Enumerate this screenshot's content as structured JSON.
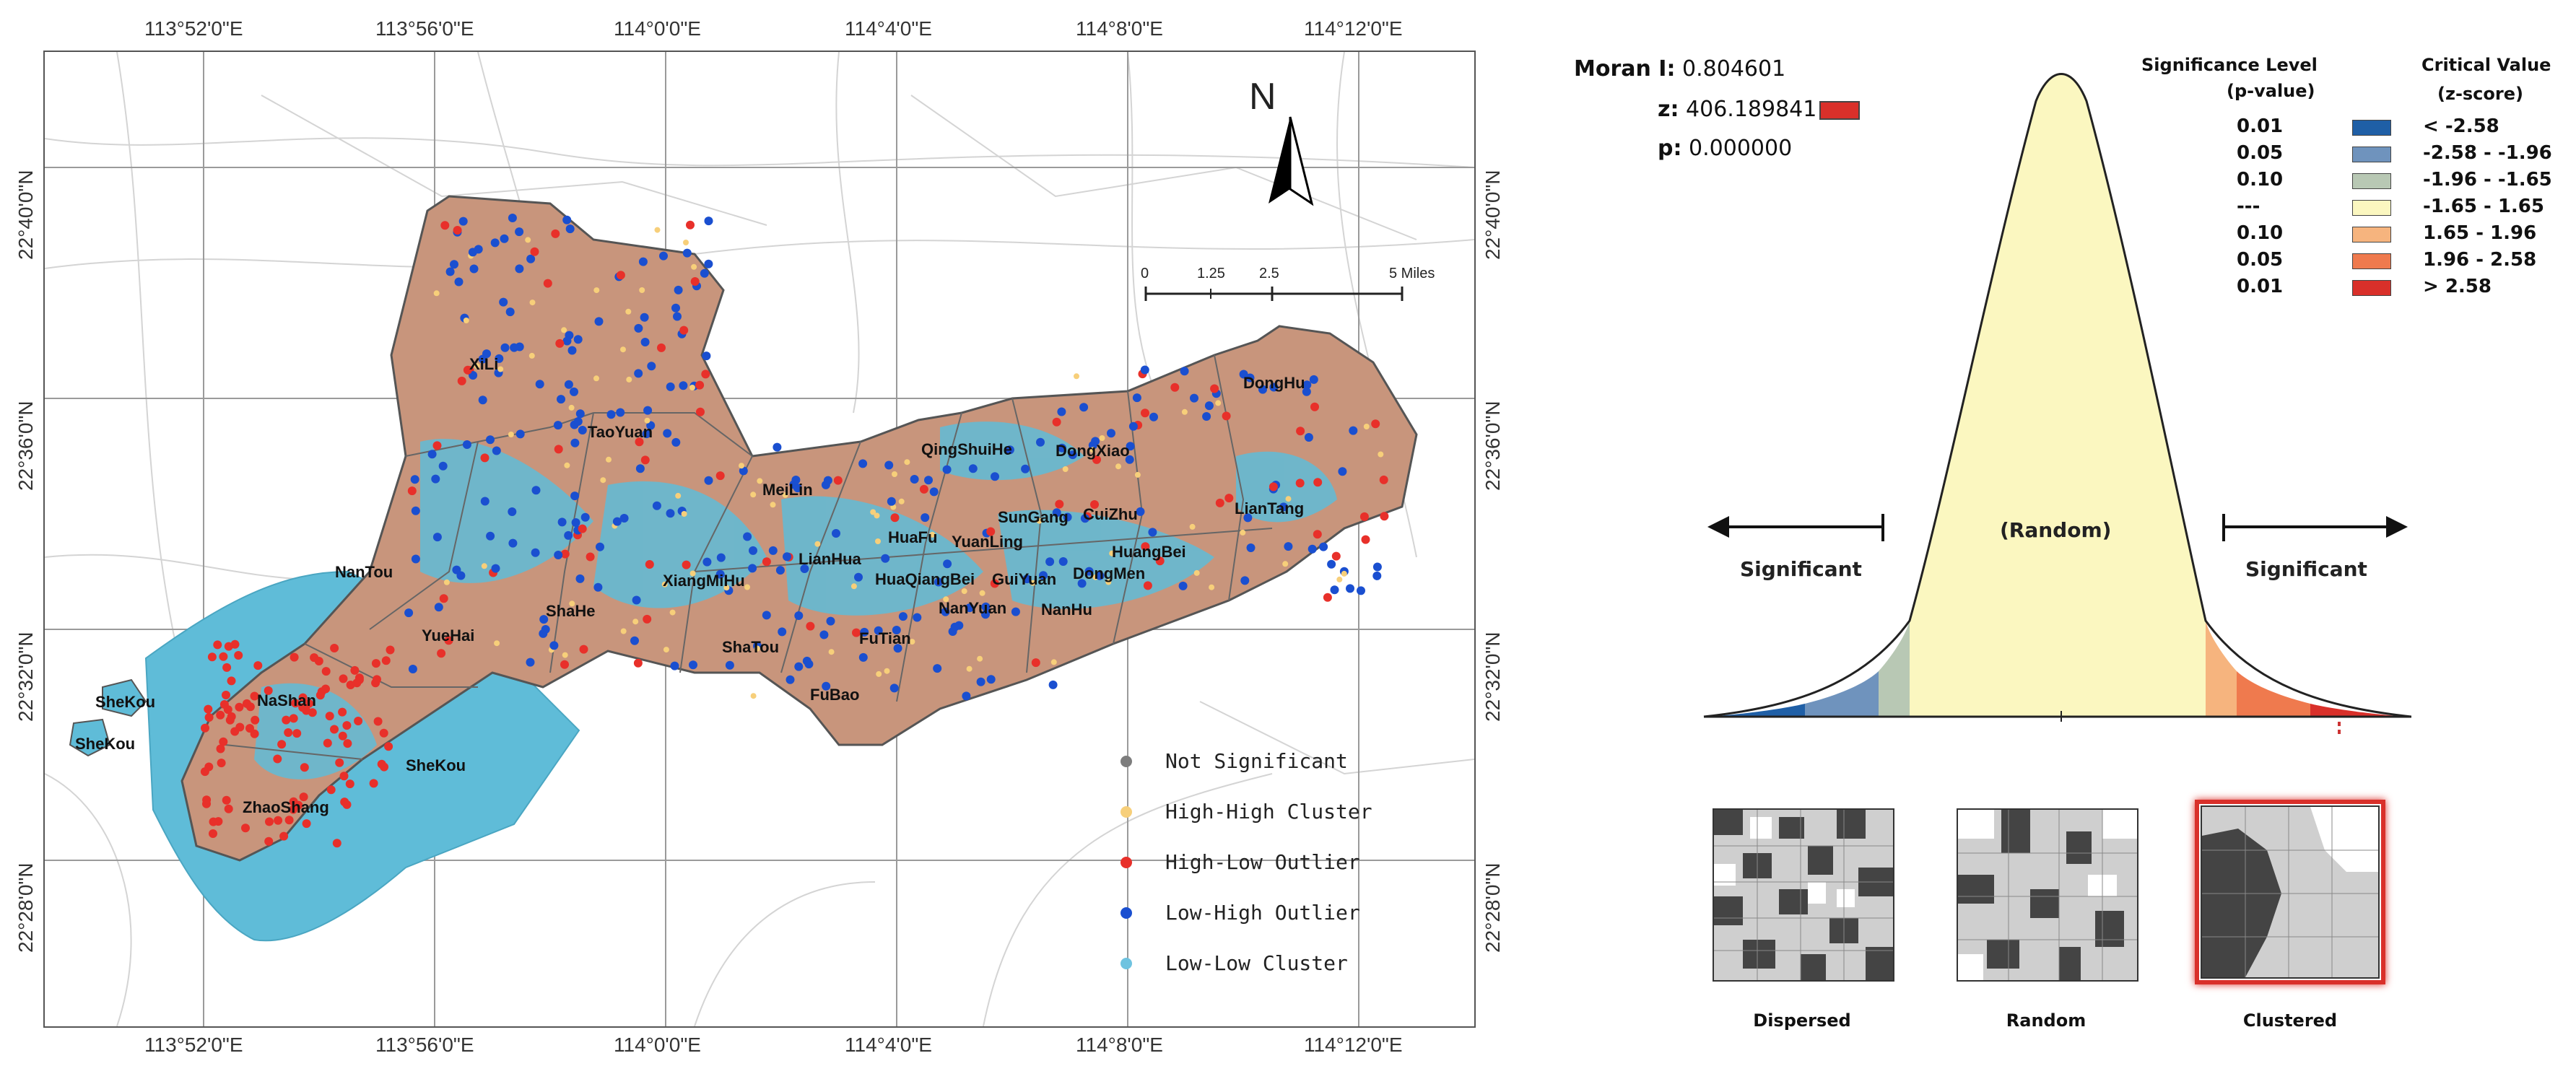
{
  "map": {
    "top_lon_ticks": [
      "113°52'0\"E",
      "113°56'0\"E",
      "114°0'0\"E",
      "114°4'0\"E",
      "114°8'0\"E",
      "114°12'0\"E"
    ],
    "bottom_lon_ticks": [
      "113°52'0\"E",
      "113°56'0\"E",
      "114°0'0\"E",
      "114°4'0\"E",
      "114°8'0\"E",
      "114°12'0\"E"
    ],
    "left_lat_ticks": [
      "22°40'0\"N",
      "22°36'0\"N",
      "22°32'0\"N",
      "22°28'0\"N"
    ],
    "right_lat_ticks": [
      "22°40'0\"N",
      "22°36'0\"N",
      "22°32'0\"N",
      "22°28'0\"N"
    ],
    "north_label": "N",
    "scale": {
      "labels": [
        "0",
        "1.25",
        "2.5",
        "5 Miles"
      ]
    },
    "districts": [
      "XiLi",
      "TaoYuan",
      "NanTou",
      "YueHai",
      "ShaHe",
      "NaShan",
      "SheKou",
      "SheKou",
      "SheKou",
      "ZhaoShang",
      "MeiLin",
      "XiangMiHu",
      "LianHua",
      "ShaTou",
      "FuTian",
      "FuBao",
      "HuaFu",
      "YuanLing",
      "HuaQiangBei",
      "GuiYuan",
      "NanYuan",
      "NanHu",
      "DongMen",
      "SunGang",
      "CuiZhu",
      "HuangBei",
      "QingShuiHe",
      "DongXiao",
      "DongHu",
      "LianTang"
    ],
    "legend": [
      {
        "label": "Not Significant",
        "color": "#7d7d7d"
      },
      {
        "label": "High-High Cluster",
        "color": "#f7cf7a"
      },
      {
        "label": "High-Low Outlier",
        "color": "#e8302a"
      },
      {
        "label": "Low-High Outlier",
        "color": "#1a4fd0"
      },
      {
        "label": "Low-Low Cluster",
        "color": "#6fc3e0"
      }
    ],
    "colors": {
      "land_fill": "#c8957c",
      "water_fill": "#5fbcd8",
      "boundary": "#555555"
    }
  },
  "stats": {
    "moran_label": "Moran I:",
    "moran_value": "0.804601",
    "z_label": "z:",
    "z_value": "406.189841",
    "p_label": "p:",
    "p_value": "0.000000"
  },
  "significance": {
    "header_left_1": "Significance Level",
    "header_left_2": "(p-value)",
    "header_right_1": "Critical Value",
    "header_right_2": "(z-score)",
    "rows": [
      {
        "p": "0.01",
        "z": "< -2.58",
        "color": "#1f5fa6"
      },
      {
        "p": "0.05",
        "z": "-2.58 - -1.96",
        "color": "#6f93bd"
      },
      {
        "p": "0.10",
        "z": "-1.96 - -1.65",
        "color": "#b8c8b4"
      },
      {
        "p": "---",
        "z": "-1.65 - 1.65",
        "color": "#fbf7c0"
      },
      {
        "p": "0.10",
        "z": "1.65 - 1.96",
        "color": "#f6b47e"
      },
      {
        "p": "0.05",
        "z": "1.96 - 2.58",
        "color": "#ef7a4e"
      },
      {
        "p": "0.01",
        "z": "> 2.58",
        "color": "#d9302a"
      }
    ]
  },
  "curve": {
    "center_label": "(Random)",
    "left_label": "Significant",
    "right_label": "Significant"
  },
  "patterns": [
    {
      "label": "Dispersed"
    },
    {
      "label": "Random"
    },
    {
      "label": "Clustered"
    }
  ]
}
